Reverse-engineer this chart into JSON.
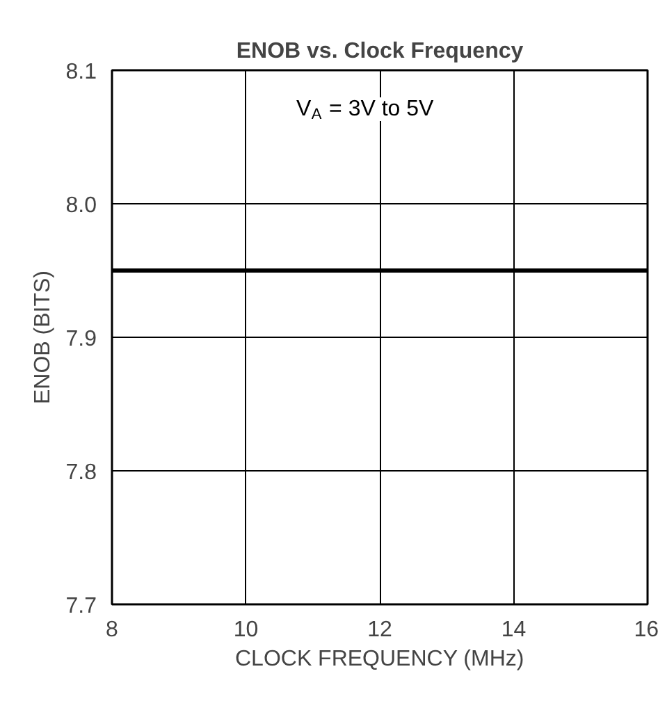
{
  "chart_data": {
    "type": "line",
    "title": "ENOB vs. Clock Frequency",
    "xlabel": "CLOCK FREQUENCY (MHz)",
    "ylabel": "ENOB (BITS)",
    "annotations": [
      "V$_{A}$ = 3V to 5V"
    ],
    "x": [
      8,
      16
    ],
    "series": [
      {
        "color": "#000000",
        "values": [
          7.95,
          7.95
        ]
      }
    ],
    "xlim": [
      8,
      16
    ],
    "ylim": [
      7.7,
      8.1
    ],
    "xticks": [
      8,
      10,
      12,
      14,
      16
    ],
    "yticks": [
      {
        "value": 7.7,
        "label": "7.7"
      },
      {
        "value": 7.8,
        "label": "7.8"
      },
      {
        "value": 7.9,
        "label": "7.9"
      },
      {
        "value": 8.0,
        "label": "8.0"
      },
      {
        "value": 8.1,
        "label": "8.1"
      }
    ],
    "grid": true,
    "marker": "none",
    "line_style": "solid"
  }
}
